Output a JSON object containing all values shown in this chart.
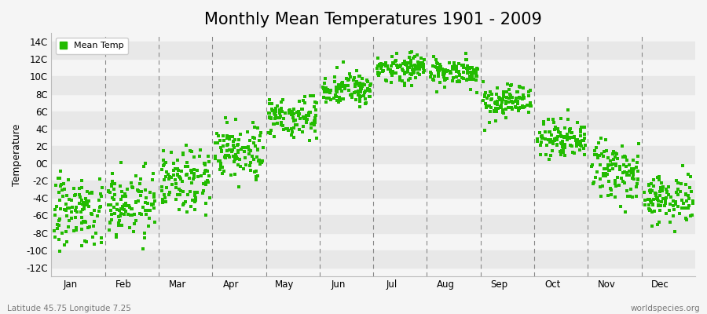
{
  "title": "Monthly Mean Temperatures 1901 - 2009",
  "ylabel": "Temperature",
  "xlabel_months": [
    "Jan",
    "Feb",
    "Mar",
    "Apr",
    "May",
    "Jun",
    "Jul",
    "Aug",
    "Sep",
    "Oct",
    "Nov",
    "Dec"
  ],
  "yticks": [
    -12,
    -10,
    -8,
    -6,
    -4,
    -2,
    0,
    2,
    4,
    6,
    8,
    10,
    12,
    14
  ],
  "ytick_labels": [
    "-12C",
    "-10C",
    "-8C",
    "-6C",
    "-4C",
    "-2C",
    "0C",
    "2C",
    "4C",
    "6C",
    "8C",
    "10C",
    "12C",
    "14C"
  ],
  "ylim": [
    -13.0,
    15.0
  ],
  "xlim": [
    0.0,
    12.0
  ],
  "dot_color": "#22bb00",
  "dot_size": 6,
  "background_color": "#f5f5f5",
  "plot_bg_color": "#f5f5f5",
  "band_color": "#e8e8e8",
  "dashed_line_color": "#888888",
  "title_fontsize": 15,
  "axis_label_fontsize": 9,
  "tick_fontsize": 8.5,
  "legend_label": "Mean Temp",
  "footer_left": "Latitude 45.75 Longitude 7.25",
  "footer_right": "worldspecies.org",
  "month_means": [
    -5.5,
    -4.5,
    -1.5,
    1.5,
    5.5,
    8.5,
    11.0,
    10.5,
    7.0,
    3.0,
    -1.0,
    -4.0
  ],
  "month_stds": [
    2.0,
    2.0,
    1.8,
    1.5,
    1.2,
    1.0,
    0.8,
    0.8,
    1.0,
    1.2,
    1.5,
    1.5
  ]
}
